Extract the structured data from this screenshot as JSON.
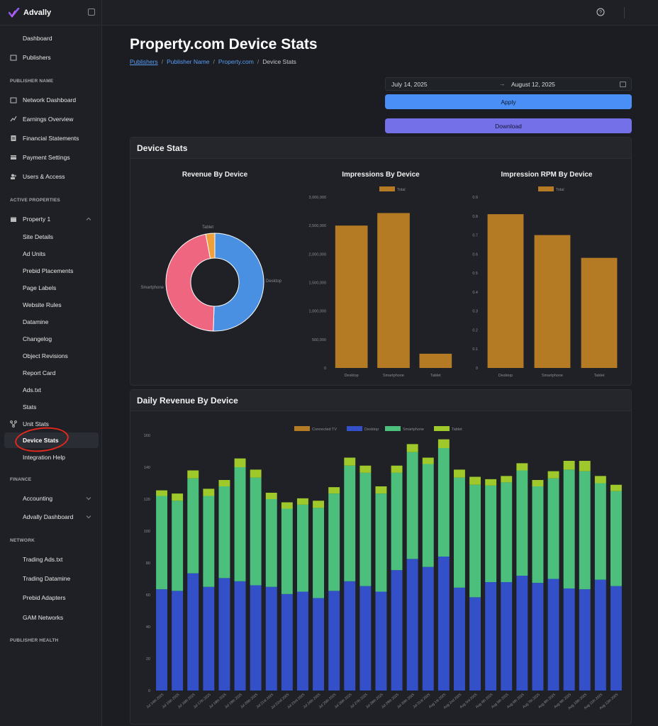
{
  "brand": {
    "name": "Advally"
  },
  "sidebar": {
    "top_items": [
      {
        "label": "Dashboard",
        "icon": "none"
      },
      {
        "label": "Publishers",
        "icon": "building-icon"
      }
    ],
    "sections": [
      {
        "title": "PUBLISHER NAME",
        "items": [
          {
            "label": "Network Dashboard",
            "icon": "building-icon"
          },
          {
            "label": "Earnings Overview",
            "icon": "trend-icon"
          },
          {
            "label": "Financial Statements",
            "icon": "document-icon"
          },
          {
            "label": "Payment Settings",
            "icon": "card-icon"
          },
          {
            "label": "Users & Access",
            "icon": "users-icon"
          }
        ]
      },
      {
        "title": "ACTIVE PROPERTIES",
        "items": [
          {
            "label": "Property 1",
            "icon": "window-icon"
          },
          {
            "label": "Site Details"
          },
          {
            "label": "Ad Units"
          },
          {
            "label": "Prebid Placements"
          },
          {
            "label": "Page Labels"
          },
          {
            "label": "Website Rules"
          },
          {
            "label": "Datamine"
          },
          {
            "label": "Changelog"
          },
          {
            "label": "Object Revisions"
          },
          {
            "label": "Report Card"
          },
          {
            "label": "Ads.txt"
          },
          {
            "label": "Stats"
          },
          {
            "label": "Unit Stats",
            "icon": "nodes-icon"
          },
          {
            "label": "Device Stats"
          },
          {
            "label": "Integration Help"
          }
        ]
      },
      {
        "title": "FINANCE",
        "items": [
          {
            "label": "Accounting"
          },
          {
            "label": "Advally Dashboard"
          }
        ]
      },
      {
        "title": "NETWORK",
        "items": [
          {
            "label": "Trading Ads.txt"
          },
          {
            "label": "Trading Datamine"
          },
          {
            "label": "Prebid Adapters"
          },
          {
            "label": "GAM Networks"
          }
        ]
      },
      {
        "title": "PUBLISHER HEALTH",
        "items": []
      }
    ]
  },
  "page": {
    "title": "Property.com Device Stats",
    "breadcrumb": [
      "Publishers",
      "Publisher Name",
      "Property.com",
      "Device Stats"
    ]
  },
  "filters": {
    "start_date": "July 14, 2025",
    "end_date": "August 12, 2025",
    "arrow": "→",
    "apply_label": "Apply",
    "download_label": "Download"
  },
  "device_card": {
    "title": "Device Stats"
  },
  "daily_card": {
    "title": "Daily Revenue By Device"
  },
  "chart_data": [
    {
      "type": "pie",
      "title": "Revenue By Device",
      "labels": [
        "Desktop",
        "Smartphone",
        "Tablet"
      ],
      "values": [
        50.5,
        46.5,
        3.0
      ],
      "colors": [
        "#4a90e2",
        "#ef6680",
        "#f0a03a"
      ]
    },
    {
      "type": "bar",
      "title": "Impressions By Device",
      "categories": [
        "Desktop",
        "Smartphone",
        "Tablet"
      ],
      "series": [
        {
          "name": "Total",
          "values": [
            2500000,
            2720000,
            250000
          ]
        }
      ],
      "ylim": [
        0,
        3000000
      ],
      "yticks": [
        "0",
        "500,000",
        "1,000,000",
        "1,500,000",
        "2,000,000",
        "2,500,000",
        "3,000,000"
      ],
      "color": "#b47b24"
    },
    {
      "type": "bar",
      "title": "Impression RPM By Device",
      "categories": [
        "Desktop",
        "Smartphone",
        "Tablet"
      ],
      "series": [
        {
          "name": "Total",
          "values": [
            0.81,
            0.7,
            0.58
          ]
        }
      ],
      "ylim": [
        0,
        0.9
      ],
      "yticks": [
        "0",
        "0.1",
        "0.2",
        "0.3",
        "0.4",
        "0.5",
        "0.6",
        "0.7",
        "0.8",
        "0.9"
      ],
      "color": "#b47b24"
    },
    {
      "type": "bar",
      "stacked": true,
      "title": "",
      "categories": [
        "Jul 14th 2025",
        "Jul 15th 2025",
        "Jul 16th 2025",
        "Jul 17th 2025",
        "Jul 18th 2025",
        "Jul 19th 2025",
        "Jul 20th 2025",
        "Jul 21st 2025",
        "Jul 22nd 2025",
        "Jul 23rd 2025",
        "Jul 24th 2025",
        "Jul 25th 2025",
        "Jul 26th 2025",
        "Jul 27th 2025",
        "Jul 28th 2025",
        "Jul 29th 2025",
        "Jul 30th 2025",
        "Jul 31st 2025",
        "Aug 1st 2025",
        "Aug 2nd 2025",
        "Aug 3rd 2025",
        "Aug 4th 2025",
        "Aug 5th 2025",
        "Aug 6th 2025",
        "Aug 7th 2025",
        "Aug 8th 2025",
        "Aug 9th 2025",
        "Aug 10th 2025",
        "Aug 11th 2025",
        "Aug 12th 2025"
      ],
      "series": [
        {
          "name": "Connected TV",
          "color": "#b47b24",
          "values": [
            0,
            0,
            0,
            0,
            0,
            0,
            0,
            0,
            0,
            0,
            0,
            0,
            0,
            0,
            0,
            0,
            0,
            0,
            0,
            0,
            0,
            0,
            0,
            0,
            0,
            0,
            0,
            0,
            0,
            0
          ]
        },
        {
          "name": "Desktop",
          "color": "#3350c8",
          "values": [
            63.5,
            62.5,
            73.5,
            65,
            70.5,
            68.5,
            66,
            65,
            60.5,
            62,
            58,
            62.5,
            68.5,
            65.5,
            62,
            75.5,
            82.5,
            77.5,
            84,
            64.5,
            58.5,
            68,
            68,
            72,
            67.5,
            70,
            64,
            63.5,
            69.5,
            65.5
          ]
        },
        {
          "name": "Smartphone",
          "color": "#4bbf7b",
          "values": [
            58.5,
            56.5,
            59.5,
            57,
            57.5,
            71.5,
            67.5,
            55,
            53.5,
            54.5,
            56.5,
            61,
            72.5,
            71,
            61.5,
            61,
            67,
            64.5,
            68,
            69,
            70.5,
            60.5,
            62.5,
            66,
            60.5,
            63,
            74.5,
            74,
            60.5,
            59.5
          ]
        },
        {
          "name": "Tablet",
          "color": "#9fc82a",
          "values": [
            3.5,
            4.5,
            5,
            4.5,
            4,
            5.5,
            5,
            4,
            4,
            4,
            4.5,
            4,
            5,
            4.5,
            4.5,
            4.5,
            5,
            4,
            5.5,
            5,
            5,
            4,
            4,
            4.5,
            4,
            4.5,
            5.5,
            6.5,
            4.5,
            4
          ]
        }
      ],
      "ylim": [
        0,
        160
      ],
      "yticks": [
        "0",
        "20",
        "40",
        "60",
        "80",
        "100",
        "120",
        "140",
        "160"
      ]
    }
  ]
}
